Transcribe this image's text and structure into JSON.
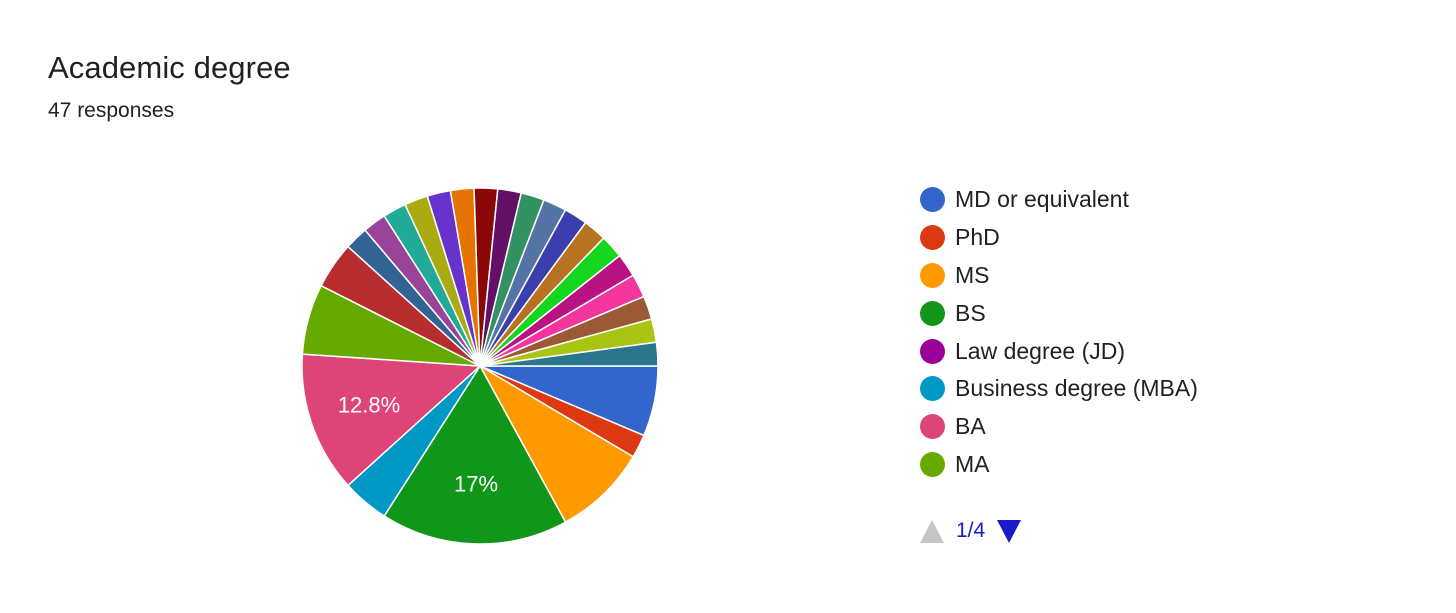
{
  "title": "Academic degree",
  "subtitle": "47 responses",
  "legend": {
    "items": [
      {
        "label": "MD or equivalent",
        "color": "#3366cc"
      },
      {
        "label": "PhD",
        "color": "#dc3912"
      },
      {
        "label": "MS",
        "color": "#ff9900"
      },
      {
        "label": "BS",
        "color": "#109618"
      },
      {
        "label": "Law degree (JD)",
        "color": "#990099"
      },
      {
        "label": "Business degree (MBA)",
        "color": "#0099c6"
      },
      {
        "label": "BA",
        "color": "#dd4477"
      },
      {
        "label": "MA",
        "color": "#66aa00"
      }
    ]
  },
  "pager": {
    "text": "1/4",
    "up_icon": "triangle-up-icon",
    "down_icon": "triangle-down-icon"
  },
  "chart_data": {
    "type": "pie",
    "total": 47,
    "slices": [
      {
        "label": "MD or equivalent",
        "count": 3,
        "color": "#3366cc"
      },
      {
        "label": "PhD",
        "count": 1,
        "color": "#dc3912"
      },
      {
        "label": "MS",
        "count": 4,
        "color": "#ff9900"
      },
      {
        "label": "BS",
        "count": 8,
        "color": "#109618",
        "data_label": "17%"
      },
      {
        "label": "Law degree (JD)",
        "count": 0,
        "color": "#990099"
      },
      {
        "label": "Business degree (MBA)",
        "count": 2,
        "color": "#0099c6"
      },
      {
        "label": "BA",
        "count": 6,
        "color": "#dd4477",
        "data_label": "12.8%"
      },
      {
        "label": "MA",
        "count": 3,
        "color": "#66aa00"
      },
      {
        "label": "",
        "count": 2,
        "color": "#b82e2e"
      },
      {
        "label": "",
        "count": 1,
        "color": "#316395"
      },
      {
        "label": "",
        "count": 1,
        "color": "#994499"
      },
      {
        "label": "",
        "count": 1,
        "color": "#22aa99"
      },
      {
        "label": "",
        "count": 1,
        "color": "#aaaa11"
      },
      {
        "label": "",
        "count": 1,
        "color": "#6633cc"
      },
      {
        "label": "",
        "count": 1,
        "color": "#e67300"
      },
      {
        "label": "",
        "count": 1,
        "color": "#8b0707"
      },
      {
        "label": "",
        "count": 1,
        "color": "#651067"
      },
      {
        "label": "",
        "count": 1,
        "color": "#329262"
      },
      {
        "label": "",
        "count": 1,
        "color": "#5574a6"
      },
      {
        "label": "",
        "count": 1,
        "color": "#3b3eac"
      },
      {
        "label": "",
        "count": 1,
        "color": "#b77322"
      },
      {
        "label": "",
        "count": 1,
        "color": "#16d620"
      },
      {
        "label": "",
        "count": 1,
        "color": "#b91383"
      },
      {
        "label": "",
        "count": 1,
        "color": "#f4359e"
      },
      {
        "label": "",
        "count": 1,
        "color": "#9c5935"
      },
      {
        "label": "",
        "count": 1,
        "color": "#a9c413"
      },
      {
        "label": "",
        "count": 1,
        "color": "#2a778d"
      }
    ]
  }
}
